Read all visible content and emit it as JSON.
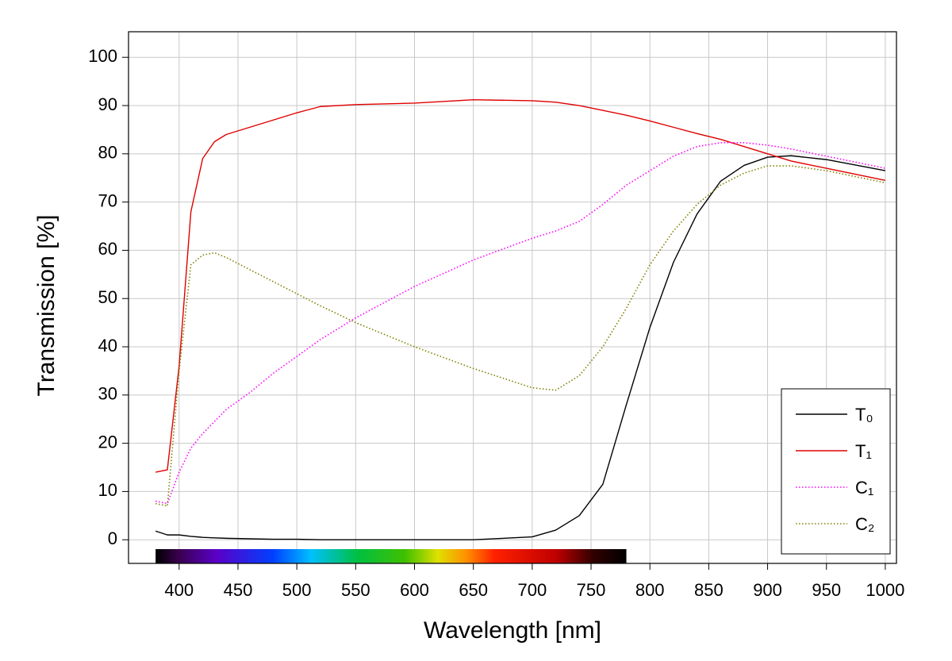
{
  "chart_data": {
    "type": "line",
    "x_label": "Wavelength [nm]",
    "y_label": "Transmission [%]",
    "x": [
      380,
      390,
      400,
      410,
      420,
      430,
      440,
      460,
      480,
      500,
      520,
      550,
      600,
      650,
      700,
      720,
      740,
      760,
      780,
      800,
      820,
      840,
      860,
      880,
      900,
      920,
      950,
      1000
    ],
    "series": [
      {
        "name": "T₀",
        "color": "#000000",
        "style": "solid",
        "values": [
          1.8,
          1,
          1,
          0.7,
          0.5,
          0.4,
          0.3,
          0.2,
          0.1,
          0.1,
          0,
          0,
          0,
          0,
          0.6,
          2,
          5,
          11.5,
          28,
          44,
          57.5,
          67.5,
          74.3,
          77.6,
          79.3,
          79.6,
          78.8,
          76.5
        ]
      },
      {
        "name": "T₁",
        "color": "#e00000",
        "style": "solid",
        "values": [
          14,
          14.5,
          36,
          68,
          79,
          82.5,
          84,
          85.5,
          87,
          88.5,
          89.8,
          90.2,
          90.5,
          91.2,
          91,
          90.7,
          90,
          89,
          88,
          86.8,
          85.5,
          84.2,
          83,
          81.5,
          80,
          78.5,
          77,
          74.5
        ]
      },
      {
        "name": "C₁",
        "color": "#ff00ff",
        "style": "dotted",
        "values": [
          8,
          7.5,
          14,
          19,
          22,
          24.5,
          27,
          30.5,
          34.5,
          38,
          41.5,
          46,
          52.5,
          58,
          62.5,
          64,
          66,
          69.5,
          73.5,
          76.5,
          79.5,
          81.5,
          82.3,
          82.3,
          81.8,
          81,
          79.5,
          77
        ]
      },
      {
        "name": "C₂",
        "color": "#808000",
        "style": "dotted",
        "values": [
          7.5,
          7,
          35,
          57,
          59,
          59.5,
          58.5,
          56,
          53.5,
          51,
          48.5,
          45,
          40,
          35.5,
          31.5,
          31,
          34,
          40,
          48,
          57,
          64,
          69.5,
          73.5,
          76,
          77.5,
          77.5,
          76.5,
          74
        ]
      }
    ],
    "spectrum_range": [
      380,
      780
    ],
    "xlim": [
      357,
      1009.5
    ],
    "ylim": [
      -4.9,
      105.3
    ],
    "xticks": [
      400,
      450,
      500,
      550,
      600,
      650,
      700,
      750,
      800,
      850,
      900,
      950,
      1000
    ],
    "yticks": [
      0,
      10,
      20,
      30,
      40,
      50,
      60,
      70,
      80,
      90,
      100
    ],
    "grid": true,
    "legend": "lower right"
  }
}
